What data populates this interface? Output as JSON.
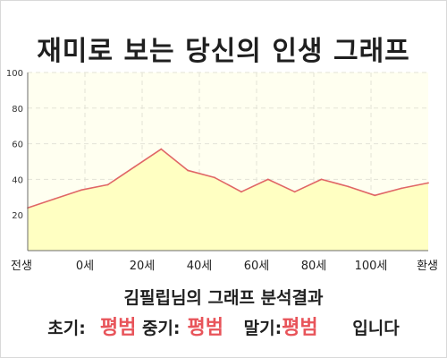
{
  "title": "재미로 보는 당신의 인생 그래프",
  "result": {
    "subtitle": "김필립님의 그래프 분석결과",
    "early_label": "초기:",
    "early_value": "평범",
    "middle_label": "중기:",
    "middle_value": "평범",
    "late_label": "말기:",
    "late_value": "평범",
    "suffix": "입니다"
  },
  "colors": {
    "line": "#e06666",
    "fill": "#ffffc2",
    "plot_bg": "#fffff0",
    "grid": "#e3e3d6",
    "accent": "#e8545a"
  },
  "chart_data": {
    "type": "area",
    "x_labels": [
      "전생",
      "0세",
      "20세",
      "40세",
      "60세",
      "80세",
      "100세",
      "환생"
    ],
    "x": [
      -30,
      -20,
      -10,
      0,
      10,
      20,
      30,
      40,
      50,
      60,
      70,
      80,
      90,
      100,
      110,
      120
    ],
    "values": [
      24,
      29,
      34,
      37,
      47,
      57,
      45,
      41,
      33,
      40,
      33,
      40,
      36,
      31,
      35,
      38
    ],
    "ylim": [
      0,
      100
    ],
    "y_ticks": [
      20,
      40,
      60,
      80,
      100
    ],
    "grid": true,
    "legend": "none"
  }
}
